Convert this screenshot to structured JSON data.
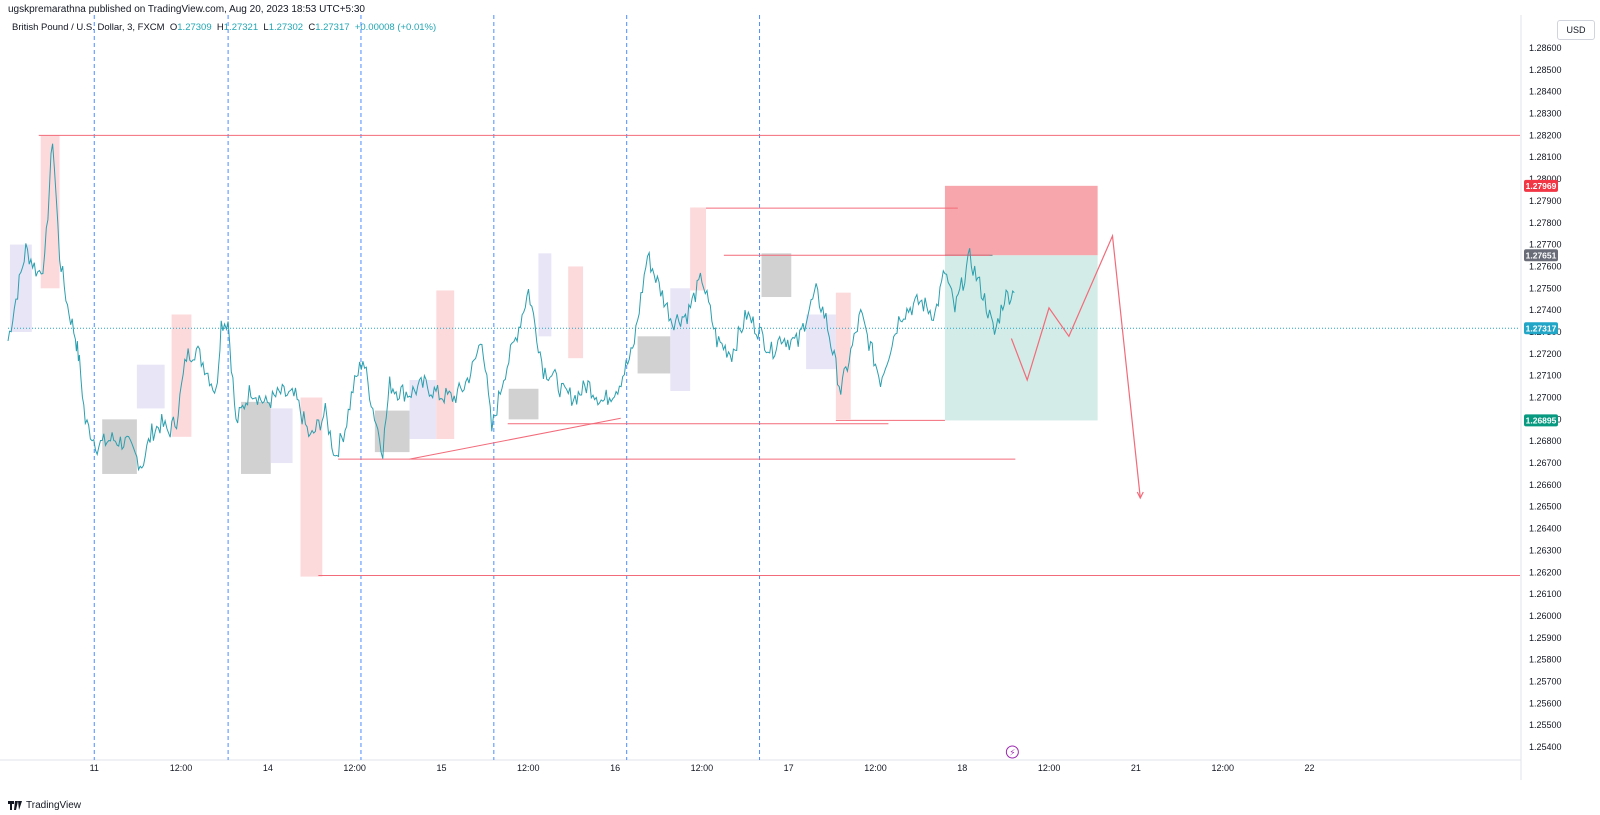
{
  "publisher_line": "ugskpremarathna published on TradingView.com, Aug 20, 2023 18:53 UTC+5:30",
  "legend": {
    "symbol": "British Pound / U.S. Dollar, 3, FXCM",
    "open_label": "O",
    "open": "1.27309",
    "high_label": "H",
    "high": "1.27321",
    "low_label": "L",
    "low": "1.27302",
    "close_label": "C",
    "close": "1.27317",
    "change": "+0.00008 (+0.01%)"
  },
  "currency_button": "USD",
  "footer_brand": "TradingView",
  "colors": {
    "price_line": "#2b9fae",
    "level_line": "#f26b7a",
    "stop_zone": "#f7a1a6",
    "target_zone": "#cfeae4",
    "session_line": "#4c8dff",
    "box_grey": "#c9c9c9",
    "box_pink": "#fbd3d6",
    "box_lavender": "#e3e0f5",
    "label_red": "#f23645",
    "label_grey": "#6a6d78",
    "label_cyan": "#22a6c8",
    "label_green": "#089981"
  },
  "chart_data": {
    "type": "line",
    "symbol": "GBP/USD",
    "y_axis": {
      "ticks": [
        "1.28600",
        "1.28500",
        "1.28400",
        "1.28300",
        "1.28200",
        "1.28100",
        "1.28000",
        "1.27900",
        "1.27800",
        "1.27700",
        "1.27600",
        "1.27500",
        "1.27400",
        "1.27300",
        "1.27200",
        "1.27100",
        "1.27000",
        "1.26900",
        "1.26800",
        "1.26700",
        "1.26600",
        "1.26500",
        "1.26400",
        "1.26300",
        "1.26200",
        "1.26100",
        "1.26000",
        "1.25900",
        "1.25800",
        "1.25700",
        "1.25600",
        "1.25500",
        "1.25400"
      ],
      "range": [
        1.2535,
        1.2868
      ]
    },
    "x_axis": {
      "ticks": [
        "11",
        "12:00",
        "14",
        "12:00",
        "15",
        "12:00",
        "16",
        "12:00",
        "17",
        "12:00",
        "18",
        "12:00",
        "21",
        "12:00",
        "22"
      ],
      "range": [
        0,
        15.25
      ]
    },
    "price_labels": [
      {
        "text": "1.27969",
        "value": 1.27969,
        "color_key": "label_red"
      },
      {
        "text": "1.27651",
        "value": 1.27651,
        "color_key": "label_grey"
      },
      {
        "text": "1.27317",
        "value": 1.27317,
        "color_key": "label_cyan"
      },
      {
        "text": "1.26895",
        "value": 1.26895,
        "color_key": "label_green"
      }
    ],
    "series": [
      {
        "x": [
          0,
          0.08,
          0.18,
          0.3,
          0.37,
          0.45,
          0.52,
          0.6,
          0.68,
          0.72,
          0.78,
          0.9,
          1.05,
          1.2,
          1.35,
          1.45,
          1.55,
          1.62,
          1.7,
          1.8,
          1.9,
          2.0,
          2.1,
          2.15,
          2.22,
          2.3,
          2.45,
          2.6,
          2.75,
          2.9,
          3.05,
          3.2,
          3.3,
          3.4,
          3.48,
          3.58,
          3.68,
          3.78,
          3.85,
          3.93,
          4.05,
          4.2,
          4.35,
          4.5,
          4.6,
          4.7,
          4.78,
          4.88,
          5.0,
          5.12,
          5.25,
          5.4,
          5.5,
          5.6,
          5.72,
          5.85,
          6.0,
          6.15,
          6.3,
          6.45,
          6.55,
          6.7,
          6.85,
          7.0,
          7.15,
          7.3,
          7.45,
          7.58,
          7.7,
          7.8,
          7.88,
          7.97,
          8.05,
          8.15,
          8.25,
          8.4,
          8.6,
          8.8,
          9.0,
          9.2,
          9.35,
          9.45,
          9.55,
          9.7,
          9.85,
          9.95,
          10.05,
          10.15
        ],
        "y": [
          1.2726,
          1.2745,
          1.2768,
          1.2757,
          1.2762,
          1.2819,
          1.2765,
          1.2742,
          1.2728,
          1.2716,
          1.2689,
          1.2678,
          1.2681,
          1.2679,
          1.2669,
          1.2684,
          1.2688,
          1.2684,
          1.269,
          1.2719,
          1.2722,
          1.2713,
          1.2702,
          1.2734,
          1.2735,
          1.2688,
          1.2704,
          1.2697,
          1.2702,
          1.27,
          1.2681,
          1.2693,
          1.2673,
          1.2686,
          1.2704,
          1.2718,
          1.2695,
          1.2676,
          1.2706,
          1.2703,
          1.2702,
          1.2706,
          1.2701,
          1.27,
          1.2705,
          1.2715,
          1.2728,
          1.2685,
          1.271,
          1.2727,
          1.2749,
          1.2713,
          1.271,
          1.2702,
          1.27,
          1.2706,
          1.2698,
          1.2705,
          1.2721,
          1.2765,
          1.2753,
          1.2735,
          1.2738,
          1.2755,
          1.2726,
          1.272,
          1.2738,
          1.273,
          1.2721,
          1.2728,
          1.2726,
          1.2725,
          1.2737,
          1.2748,
          1.2736,
          1.2703,
          1.2738,
          1.2708,
          1.2738,
          1.2744,
          1.2738,
          1.2758,
          1.274,
          1.2764,
          1.2745,
          1.2729,
          1.2746,
          1.2748
        ]
      }
    ],
    "horizontal_levels": [
      1.282,
      1.27867,
      1.27651,
      1.26895,
      1.2688,
      1.26718,
      1.26185
    ],
    "trend_line": {
      "from": [
        4.05,
        1.26718
      ],
      "to": [
        6.04,
        1.26895
      ]
    },
    "position": {
      "direction": "short",
      "entry": 1.27651,
      "stop": 1.27969,
      "target": 1.26895
    },
    "projection": {
      "x": [
        10.12,
        10.28,
        10.5,
        10.7,
        11.14,
        11.42
      ],
      "y": [
        1.2727,
        1.2708,
        1.2741,
        1.2728,
        1.2774,
        1.2654
      ]
    },
    "vertical_markers": [
      0.87,
      2.22,
      3.56,
      4.9,
      6.24,
      7.58
    ],
    "event_marker": "⚡",
    "grid": false
  }
}
